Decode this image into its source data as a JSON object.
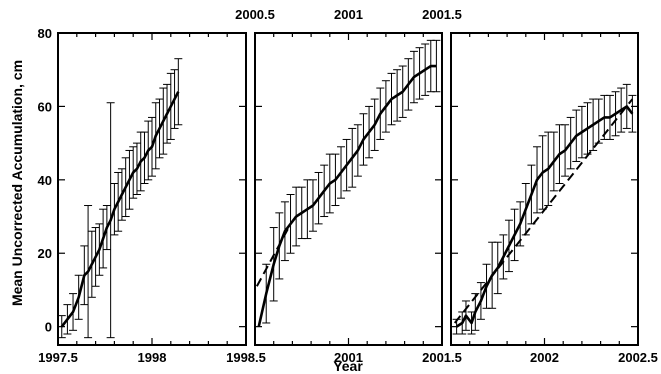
{
  "chart_data": {
    "type": "line",
    "title": "",
    "ylabel": "Mean Uncorrected Accumulation, cm",
    "xlabel": "Year",
    "ylim": [
      -5,
      80
    ],
    "y_ticks": [
      0,
      20,
      40,
      60,
      80
    ],
    "grid": false,
    "legend": "none",
    "panels": [
      {
        "xlim": [
          1997.5,
          1998.5
        ],
        "x_ticks": [
          1997.5,
          1998,
          1998.5
        ],
        "top_tick_labels": [],
        "series": [
          {
            "style": "solid-with-errorbars",
            "x": [
              1997.52,
              1997.55,
              1997.58,
              1997.61,
              1997.64,
              1997.66,
              1997.68,
              1997.7,
              1997.72,
              1997.74,
              1997.76,
              1997.78,
              1997.8,
              1997.82,
              1997.84,
              1997.86,
              1997.88,
              1997.9,
              1997.92,
              1997.94,
              1997.96,
              1997.98,
              1998.0,
              1998.02,
              1998.04,
              1998.06,
              1998.08,
              1998.1,
              1998.12,
              1998.14
            ],
            "y": [
              0,
              2,
              4,
              8,
              14,
              15,
              17,
              19,
              21,
              24,
              27,
              29,
              32,
              34,
              36,
              38,
              40,
              42,
              43,
              45,
              46,
              48,
              49,
              52,
              54,
              56,
              58,
              60,
              62,
              64
            ],
            "err": [
              3,
              4,
              5,
              6,
              8,
              18,
              9,
              8,
              7,
              8,
              6,
              32,
              7,
              8,
              7,
              8,
              8,
              7,
              7,
              8,
              7,
              8,
              8,
              9,
              8,
              9,
              8,
              9,
              8,
              9
            ]
          }
        ]
      },
      {
        "xlim": [
          2000.5,
          2001.5
        ],
        "x_ticks": [
          2000.5,
          2001,
          2001.5
        ],
        "top_tick_labels": [
          "2000.5",
          "2001",
          "2001.5"
        ],
        "series": [
          {
            "style": "solid-with-errorbars",
            "x": [
              2000.52,
              2000.56,
              2000.6,
              2000.63,
              2000.66,
              2000.69,
              2000.72,
              2000.75,
              2000.78,
              2000.81,
              2000.84,
              2000.87,
              2000.9,
              2000.93,
              2000.96,
              2000.99,
              2001.02,
              2001.05,
              2001.08,
              2001.11,
              2001.14,
              2001.17,
              2001.2,
              2001.23,
              2001.26,
              2001.29,
              2001.32,
              2001.35,
              2001.38,
              2001.41,
              2001.44,
              2001.47
            ],
            "y": [
              0,
              9,
              17,
              22,
              26,
              28,
              30,
              31,
              32,
              33,
              35,
              37,
              39,
              40,
              42,
              44,
              46,
              48,
              51,
              53,
              55,
              58,
              60,
              62,
              63,
              64,
              66,
              68,
              69,
              70,
              71,
              71
            ],
            "err": [
              0,
              8,
              10,
              9,
              8,
              8,
              8,
              7,
              8,
              7,
              7,
              7,
              8,
              7,
              7,
              7,
              8,
              7,
              7,
              7,
              7,
              7,
              7,
              7,
              7,
              7,
              7,
              7,
              7,
              7,
              7,
              7
            ]
          },
          {
            "style": "dashed-fit",
            "x": [
              2000.51,
              2000.68
            ],
            "y": [
              11,
              27
            ]
          }
        ]
      },
      {
        "xlim": [
          2001.5,
          2002.5
        ],
        "x_ticks": [
          2001.5,
          2002,
          2002.5
        ],
        "top_tick_labels": [],
        "series": [
          {
            "style": "solid-with-errorbars",
            "x": [
              2001.53,
              2001.56,
              2001.58,
              2001.61,
              2001.63,
              2001.66,
              2001.69,
              2001.72,
              2001.75,
              2001.78,
              2001.81,
              2001.84,
              2001.87,
              2001.9,
              2001.93,
              2001.96,
              2001.99,
              2002.02,
              2002.05,
              2002.08,
              2002.11,
              2002.14,
              2002.17,
              2002.2,
              2002.23,
              2002.26,
              2002.29,
              2002.32,
              2002.35,
              2002.38,
              2002.41,
              2002.44,
              2002.47
            ],
            "y": [
              0,
              1,
              3,
              1,
              4,
              7,
              11,
              14,
              16,
              19,
              22,
              25,
              28,
              32,
              36,
              40,
              42,
              43,
              45,
              47,
              48,
              50,
              52,
              53,
              54,
              55,
              56,
              57,
              57,
              58,
              59,
              60,
              58
            ],
            "err": [
              2,
              3,
              4,
              3,
              5,
              5,
              6,
              9,
              7,
              6,
              7,
              7,
              6,
              7,
              8,
              9,
              10,
              10,
              8,
              8,
              7,
              7,
              7,
              7,
              7,
              7,
              6,
              6,
              6,
              6,
              6,
              6,
              5
            ]
          },
          {
            "style": "dashed-fit",
            "x": [
              2001.52,
              2002.47
            ],
            "y": [
              1,
              62
            ]
          }
        ]
      }
    ]
  }
}
